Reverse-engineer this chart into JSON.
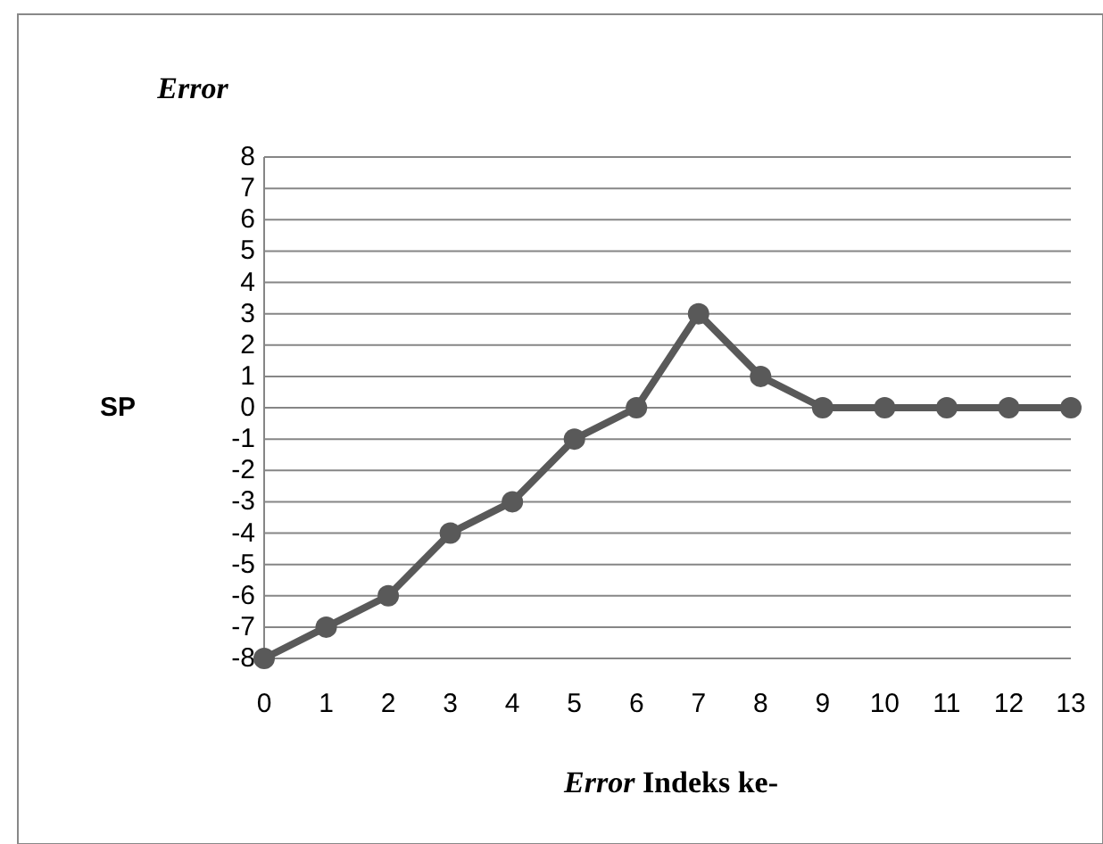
{
  "chart_data": {
    "type": "line",
    "title": "Error",
    "ylabel": "SP",
    "xlabel": "Error Indeks ke-",
    "x": [
      0,
      1,
      2,
      3,
      4,
      5,
      6,
      7,
      8,
      9,
      10,
      11,
      12,
      13
    ],
    "series": [
      {
        "color": "#595959",
        "values": [
          -8,
          -7,
          -6,
          -4,
          -3,
          -1,
          0,
          3,
          1,
          0,
          0,
          0,
          0,
          0
        ]
      }
    ],
    "xlim": [
      0,
      13
    ],
    "xticks": [
      0,
      1,
      2,
      3,
      4,
      5,
      6,
      7,
      8,
      9,
      10,
      11,
      12,
      13
    ],
    "ylim": [
      -8,
      8
    ],
    "yticks": [
      -8,
      -7,
      -6,
      -5,
      -4,
      -3,
      -2,
      -1,
      0,
      1,
      2,
      3,
      4,
      5,
      6,
      7,
      8
    ],
    "grid": "y",
    "marker": "circle",
    "line_style": "solid"
  }
}
